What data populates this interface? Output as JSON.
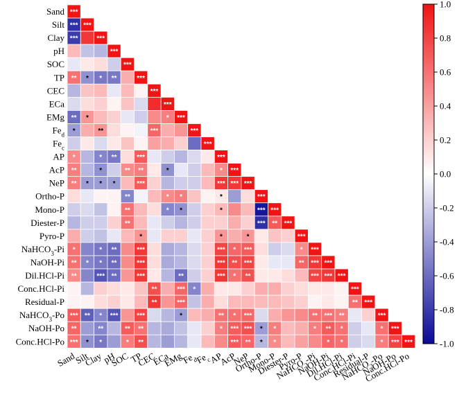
{
  "chart_data": {
    "type": "heatmap",
    "title": "",
    "variables": [
      "Sand",
      "Silt",
      "Clay",
      "pH",
      "SOC",
      "TP",
      "CEC",
      "ECa",
      "EMg",
      "Fed",
      "Fec",
      "AP",
      "AcP",
      "NeP",
      "Ortho-P",
      "Mono-P",
      "Diester-P",
      "Pyro-P",
      "NaHCO3-Pi",
      "NaOH-Pi",
      "Dil.HCl-Pi",
      "Conc.HCl-Pi",
      "Residual-P",
      "NaHCO3-Po",
      "NaOH-Po",
      "Conc.HCl-Po"
    ],
    "labels": [
      {
        "base": "Sand",
        "sub": ""
      },
      {
        "base": "Silt",
        "sub": ""
      },
      {
        "base": "Clay",
        "sub": ""
      },
      {
        "base": "pH",
        "sub": ""
      },
      {
        "base": "SOC",
        "sub": ""
      },
      {
        "base": "TP",
        "sub": ""
      },
      {
        "base": "CEC",
        "sub": ""
      },
      {
        "base": "ECa",
        "sub": ""
      },
      {
        "base": "EMg",
        "sub": ""
      },
      {
        "base": "Fe",
        "sub": "d"
      },
      {
        "base": "Fe",
        "sub": "c"
      },
      {
        "base": "AP",
        "sub": ""
      },
      {
        "base": "AcP",
        "sub": ""
      },
      {
        "base": "NeP",
        "sub": ""
      },
      {
        "base": "Ortho-P",
        "sub": ""
      },
      {
        "base": "Mono-P",
        "sub": ""
      },
      {
        "base": "Diester-P",
        "sub": ""
      },
      {
        "base": "Pyro-P",
        "sub": ""
      },
      {
        "base": "NaHCO",
        "sub": "3",
        "rest": "-Pi"
      },
      {
        "base": "NaOH-Pi",
        "sub": ""
      },
      {
        "base": "Dil.HCl-Pi",
        "sub": ""
      },
      {
        "base": "Conc.HCl-Pi",
        "sub": ""
      },
      {
        "base": "Residual-P",
        "sub": ""
      },
      {
        "base": "NaHCO",
        "sub": "3",
        "rest": "-Po"
      },
      {
        "base": "NaOH-Po",
        "sub": ""
      },
      {
        "base": "Conc.HCl-Po",
        "sub": ""
      }
    ],
    "matrix": [
      [
        1
      ],
      [
        -0.85,
        1
      ],
      [
        -0.8,
        0.85,
        1
      ],
      [
        0.3,
        -0.25,
        -0.3,
        1
      ],
      [
        -0.1,
        0.1,
        0.15,
        -0.2,
        1
      ],
      [
        0.6,
        -0.45,
        -0.55,
        -0.55,
        0.35,
        1
      ],
      [
        -0.3,
        0.25,
        0.3,
        -0.1,
        0.3,
        0.05,
        1
      ],
      [
        -0.15,
        0.15,
        0.2,
        0.05,
        0.25,
        -0.15,
        0.9,
        1
      ],
      [
        -0.6,
        0.45,
        0.3,
        0.2,
        -0.1,
        -0.2,
        0.5,
        0.55,
        1
      ],
      [
        -0.4,
        0.35,
        0.45,
        0.15,
        0.05,
        -0.05,
        0.65,
        0.35,
        0.45,
        1
      ],
      [
        -0.2,
        0.1,
        -0.15,
        0.1,
        0.25,
        0.05,
        0.4,
        0.35,
        0.2,
        -0.6,
        1
      ],
      [
        0.5,
        -0.3,
        -0.5,
        -0.55,
        0.15,
        0.7,
        -0.1,
        -0.2,
        -0.3,
        -0.15,
        0.1,
        1
      ],
      [
        0.55,
        -0.3,
        -0.45,
        -0.2,
        0.5,
        0.55,
        0.1,
        -0.45,
        -0.1,
        -0.2,
        0.3,
        0.5,
        1
      ],
      [
        0.55,
        -0.4,
        -0.4,
        -0.4,
        0.3,
        0.7,
        0.2,
        -0.3,
        -0.2,
        -0.2,
        0.3,
        0.85,
        0.85,
        1
      ],
      [
        0.15,
        -0.1,
        0.05,
        0.05,
        -0.5,
        -0.05,
        0.3,
        0.5,
        0.55,
        0.25,
        0.05,
        0.1,
        -0.4,
        0.15,
        1
      ],
      [
        -0.2,
        -0.15,
        -0.25,
        0.05,
        0.6,
        0.3,
        0.15,
        -0.5,
        -0.45,
        -0.2,
        0.2,
        0.3,
        0.5,
        0.3,
        -0.95,
        1
      ],
      [
        -0.3,
        -0.2,
        -0.2,
        0.2,
        0.6,
        0.3,
        -0.1,
        -0.2,
        -0.3,
        -0.2,
        0.2,
        0.2,
        0.35,
        0.2,
        -0.85,
        0.7,
        1
      ],
      [
        0.35,
        -0.2,
        -0.25,
        -0.1,
        0.3,
        0.45,
        -0.1,
        0.2,
        0.2,
        -0.1,
        0.2,
        0.45,
        0.35,
        0.45,
        0.1,
        0.25,
        0.2,
        1
      ],
      [
        0.6,
        -0.5,
        -0.55,
        -0.6,
        0.5,
        0.85,
        0.15,
        -0.35,
        -0.3,
        -0.15,
        0.2,
        0.8,
        0.65,
        0.7,
        0.15,
        -0.2,
        -0.15,
        0.5,
        1
      ],
      [
        0.6,
        -0.5,
        -0.55,
        -0.6,
        0.5,
        0.85,
        0.15,
        -0.35,
        -0.3,
        -0.15,
        0.2,
        0.85,
        0.75,
        0.8,
        0.1,
        -0.1,
        -0.1,
        0.65,
        0.85,
        1
      ],
      [
        0.5,
        -0.5,
        -0.7,
        -0.6,
        0.45,
        0.85,
        0.1,
        -0.3,
        -0.6,
        -0.2,
        0.2,
        0.85,
        0.6,
        0.75,
        0.1,
        0.1,
        0.15,
        0.3,
        0.8,
        0.85,
        1
      ],
      [
        0.05,
        -0.3,
        0.2,
        0.15,
        0.1,
        0.25,
        0.75,
        0.35,
        0.65,
        -0.5,
        0.35,
        0.1,
        0.1,
        0.2,
        0.35,
        0.35,
        0.2,
        0.15,
        0.1,
        0.1,
        0.05,
        1
      ],
      [
        0.05,
        0.05,
        0.15,
        0.2,
        0.1,
        0.3,
        0.85,
        0.45,
        0.65,
        -0.25,
        0.35,
        0.15,
        0.3,
        0.3,
        0.3,
        0.3,
        0.25,
        0.2,
        0.05,
        0.1,
        0.05,
        0.6,
        1
      ],
      [
        0.7,
        -0.65,
        -0.5,
        -0.7,
        0.45,
        0.8,
        -0.15,
        -0.3,
        -0.4,
        0.3,
        0.35,
        0.6,
        0.6,
        0.65,
        -0.15,
        0.35,
        0.45,
        0.5,
        0.6,
        0.6,
        0.55,
        -0.1,
        0.2,
        1
      ],
      [
        0.65,
        -0.4,
        -0.5,
        -0.3,
        0.7,
        0.6,
        -0.3,
        -0.35,
        -0.25,
        -0.1,
        0.2,
        0.55,
        0.7,
        0.75,
        -0.4,
        0.55,
        0.3,
        0.35,
        0.55,
        0.7,
        0.6,
        -0.2,
        -0.1,
        0.6,
        1
      ],
      [
        0.6,
        -0.45,
        -0.55,
        -0.4,
        0.55,
        0.75,
        -0.3,
        -0.4,
        -0.3,
        -0.1,
        0.3,
        0.5,
        0.7,
        0.65,
        -0.3,
        0.5,
        0.3,
        0.4,
        0.5,
        0.65,
        0.6,
        -0.2,
        -0.15,
        0.55,
        0.8,
        1
      ]
    ],
    "significance": [
      [
        "***"
      ],
      [
        "***",
        "***"
      ],
      [
        "***",
        "",
        "***"
      ],
      [
        "",
        "",
        "",
        "***"
      ],
      [
        "",
        "",
        "",
        "",
        "***"
      ],
      [
        "**",
        "*",
        "*",
        "**",
        "",
        "***"
      ],
      [
        "",
        "",
        "",
        "",
        "",
        "",
        "***"
      ],
      [
        "",
        "",
        "",
        "",
        "",
        "",
        "",
        "***"
      ],
      [
        "**",
        "*",
        "",
        "",
        "",
        "",
        "",
        "*",
        "***"
      ],
      [
        "*",
        "",
        "**",
        "",
        "",
        "",
        "***",
        "",
        "",
        "***"
      ],
      [
        "",
        "",
        "",
        "",
        "",
        "",
        "",
        "",
        "",
        "",
        "***"
      ],
      [
        "*",
        "",
        "*",
        "**",
        "",
        "***",
        "",
        "",
        "",
        "",
        "",
        "***"
      ],
      [
        "**",
        "",
        "*",
        "",
        "**",
        "**",
        "",
        "*",
        "",
        "",
        "",
        "*",
        "***"
      ],
      [
        "**",
        "*",
        "*",
        "*",
        "",
        "***",
        "",
        "",
        "",
        "",
        "",
        "***",
        "***",
        "***"
      ],
      [
        "",
        "",
        "",
        "",
        "**",
        "",
        "",
        "*",
        "*",
        "",
        "",
        "*",
        "",
        "",
        "***"
      ],
      [
        "",
        "",
        "",
        "",
        "**",
        "",
        "",
        "*",
        "*",
        "",
        "",
        "*",
        "",
        "",
        "***",
        "***"
      ],
      [
        "",
        "",
        "",
        "",
        "**",
        "",
        "",
        "",
        "",
        "",
        "",
        "",
        "",
        "",
        "***",
        "**",
        "***"
      ],
      [
        "",
        "",
        "",
        "",
        "",
        "*",
        "",
        "",
        "",
        "",
        "",
        "*",
        "",
        "*",
        "",
        "",
        "",
        "***"
      ],
      [
        "*",
        "",
        "*",
        "**",
        "",
        "***",
        "",
        "",
        "",
        "",
        "",
        "***",
        "*",
        "***",
        "",
        "",
        "",
        "*",
        "***"
      ],
      [
        "**",
        "*",
        "*",
        "**",
        "",
        "***",
        "",
        "",
        "",
        "",
        "",
        "***",
        "**",
        "***",
        "",
        "",
        "",
        "**",
        "***",
        "***"
      ],
      [
        "**",
        "",
        "***",
        "**",
        "",
        "***",
        "",
        "",
        "**",
        "",
        "",
        "***",
        "*",
        "**",
        "",
        "",
        "",
        "",
        "***",
        "***",
        "***"
      ],
      [
        "",
        "",
        "",
        "",
        "",
        "",
        "**",
        "",
        "***",
        "*",
        "",
        "",
        "",
        "",
        "",
        "",
        "",
        "",
        "",
        "",
        "",
        "***"
      ],
      [
        "",
        "",
        "",
        "",
        "",
        "",
        "**",
        "",
        "***",
        "",
        "",
        "",
        "",
        "",
        "",
        "",
        "",
        "",
        "",
        "",
        "",
        "**",
        "***"
      ],
      [
        "***",
        "**",
        "*",
        "***",
        "",
        "***",
        "",
        "",
        "*",
        "",
        "",
        "**",
        "*",
        "***",
        "",
        "",
        "",
        "",
        "**",
        "***",
        "**",
        "",
        "",
        "***"
      ],
      [
        "**",
        "",
        "**",
        "",
        "**",
        "**",
        "",
        "",
        "",
        "",
        "",
        "*",
        "***",
        "***",
        "*",
        "*",
        "",
        "",
        "*",
        "**",
        "*",
        "",
        "",
        "*",
        "***"
      ],
      [
        "***",
        "*",
        "*",
        "",
        "*",
        "**",
        "",
        "",
        "",
        "",
        "",
        "",
        "***",
        "**",
        "*",
        "*",
        "",
        "",
        "",
        "*",
        "*",
        "",
        "",
        "*",
        "***",
        "***"
      ]
    ],
    "colorbar": {
      "min": -1.0,
      "max": 1.0,
      "ticks": [
        "1.0",
        "0.8",
        "0.6",
        "0.4",
        "0.2",
        "0.0",
        "-0.2",
        "-0.4",
        "-0.6",
        "-0.8",
        "-1.0"
      ]
    },
    "colors": {
      "negative": "#0a0a96",
      "neutral": "#ffffff",
      "positive": "#f01414"
    },
    "legend": "right"
  }
}
